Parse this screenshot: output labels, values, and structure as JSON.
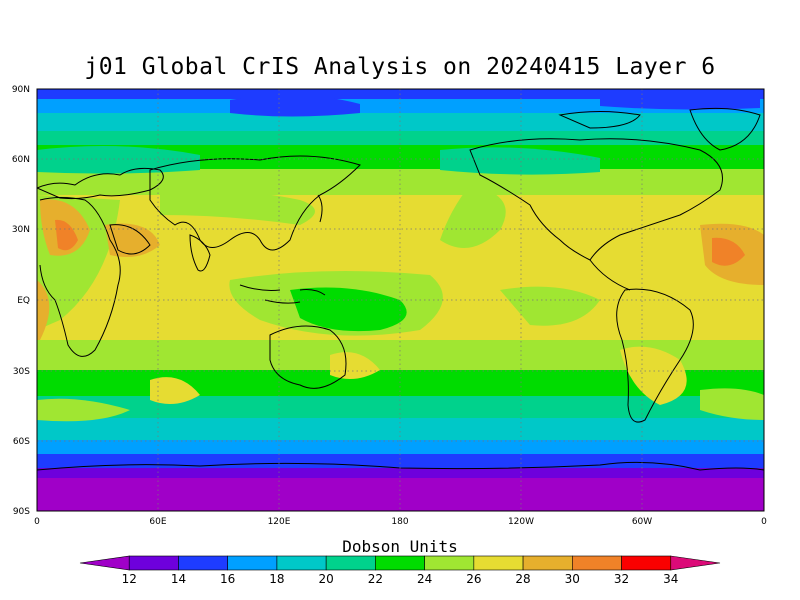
{
  "title": "j01 Global CrIS Analysis on 20240415 Layer 6",
  "lat_labels": [
    "90N",
    "60N",
    "30N",
    "EQ",
    "30S",
    "60S",
    "90S"
  ],
  "lon_labels": [
    "0",
    "60E",
    "120E",
    "180",
    "120W",
    "60W",
    "0"
  ],
  "colorbar": {
    "title": "Dobson Units",
    "ticks": [
      "12",
      "14",
      "16",
      "18",
      "20",
      "22",
      "24",
      "26",
      "28",
      "30",
      "32",
      "34"
    ],
    "colors": [
      "#a000c8",
      "#6e00dc",
      "#1e3cff",
      "#00a0ff",
      "#00c8c8",
      "#00d28c",
      "#00dc00",
      "#a0e632",
      "#e6dc32",
      "#e6af2d",
      "#f08228",
      "#fa0000",
      "#dc0a78"
    ]
  }
}
